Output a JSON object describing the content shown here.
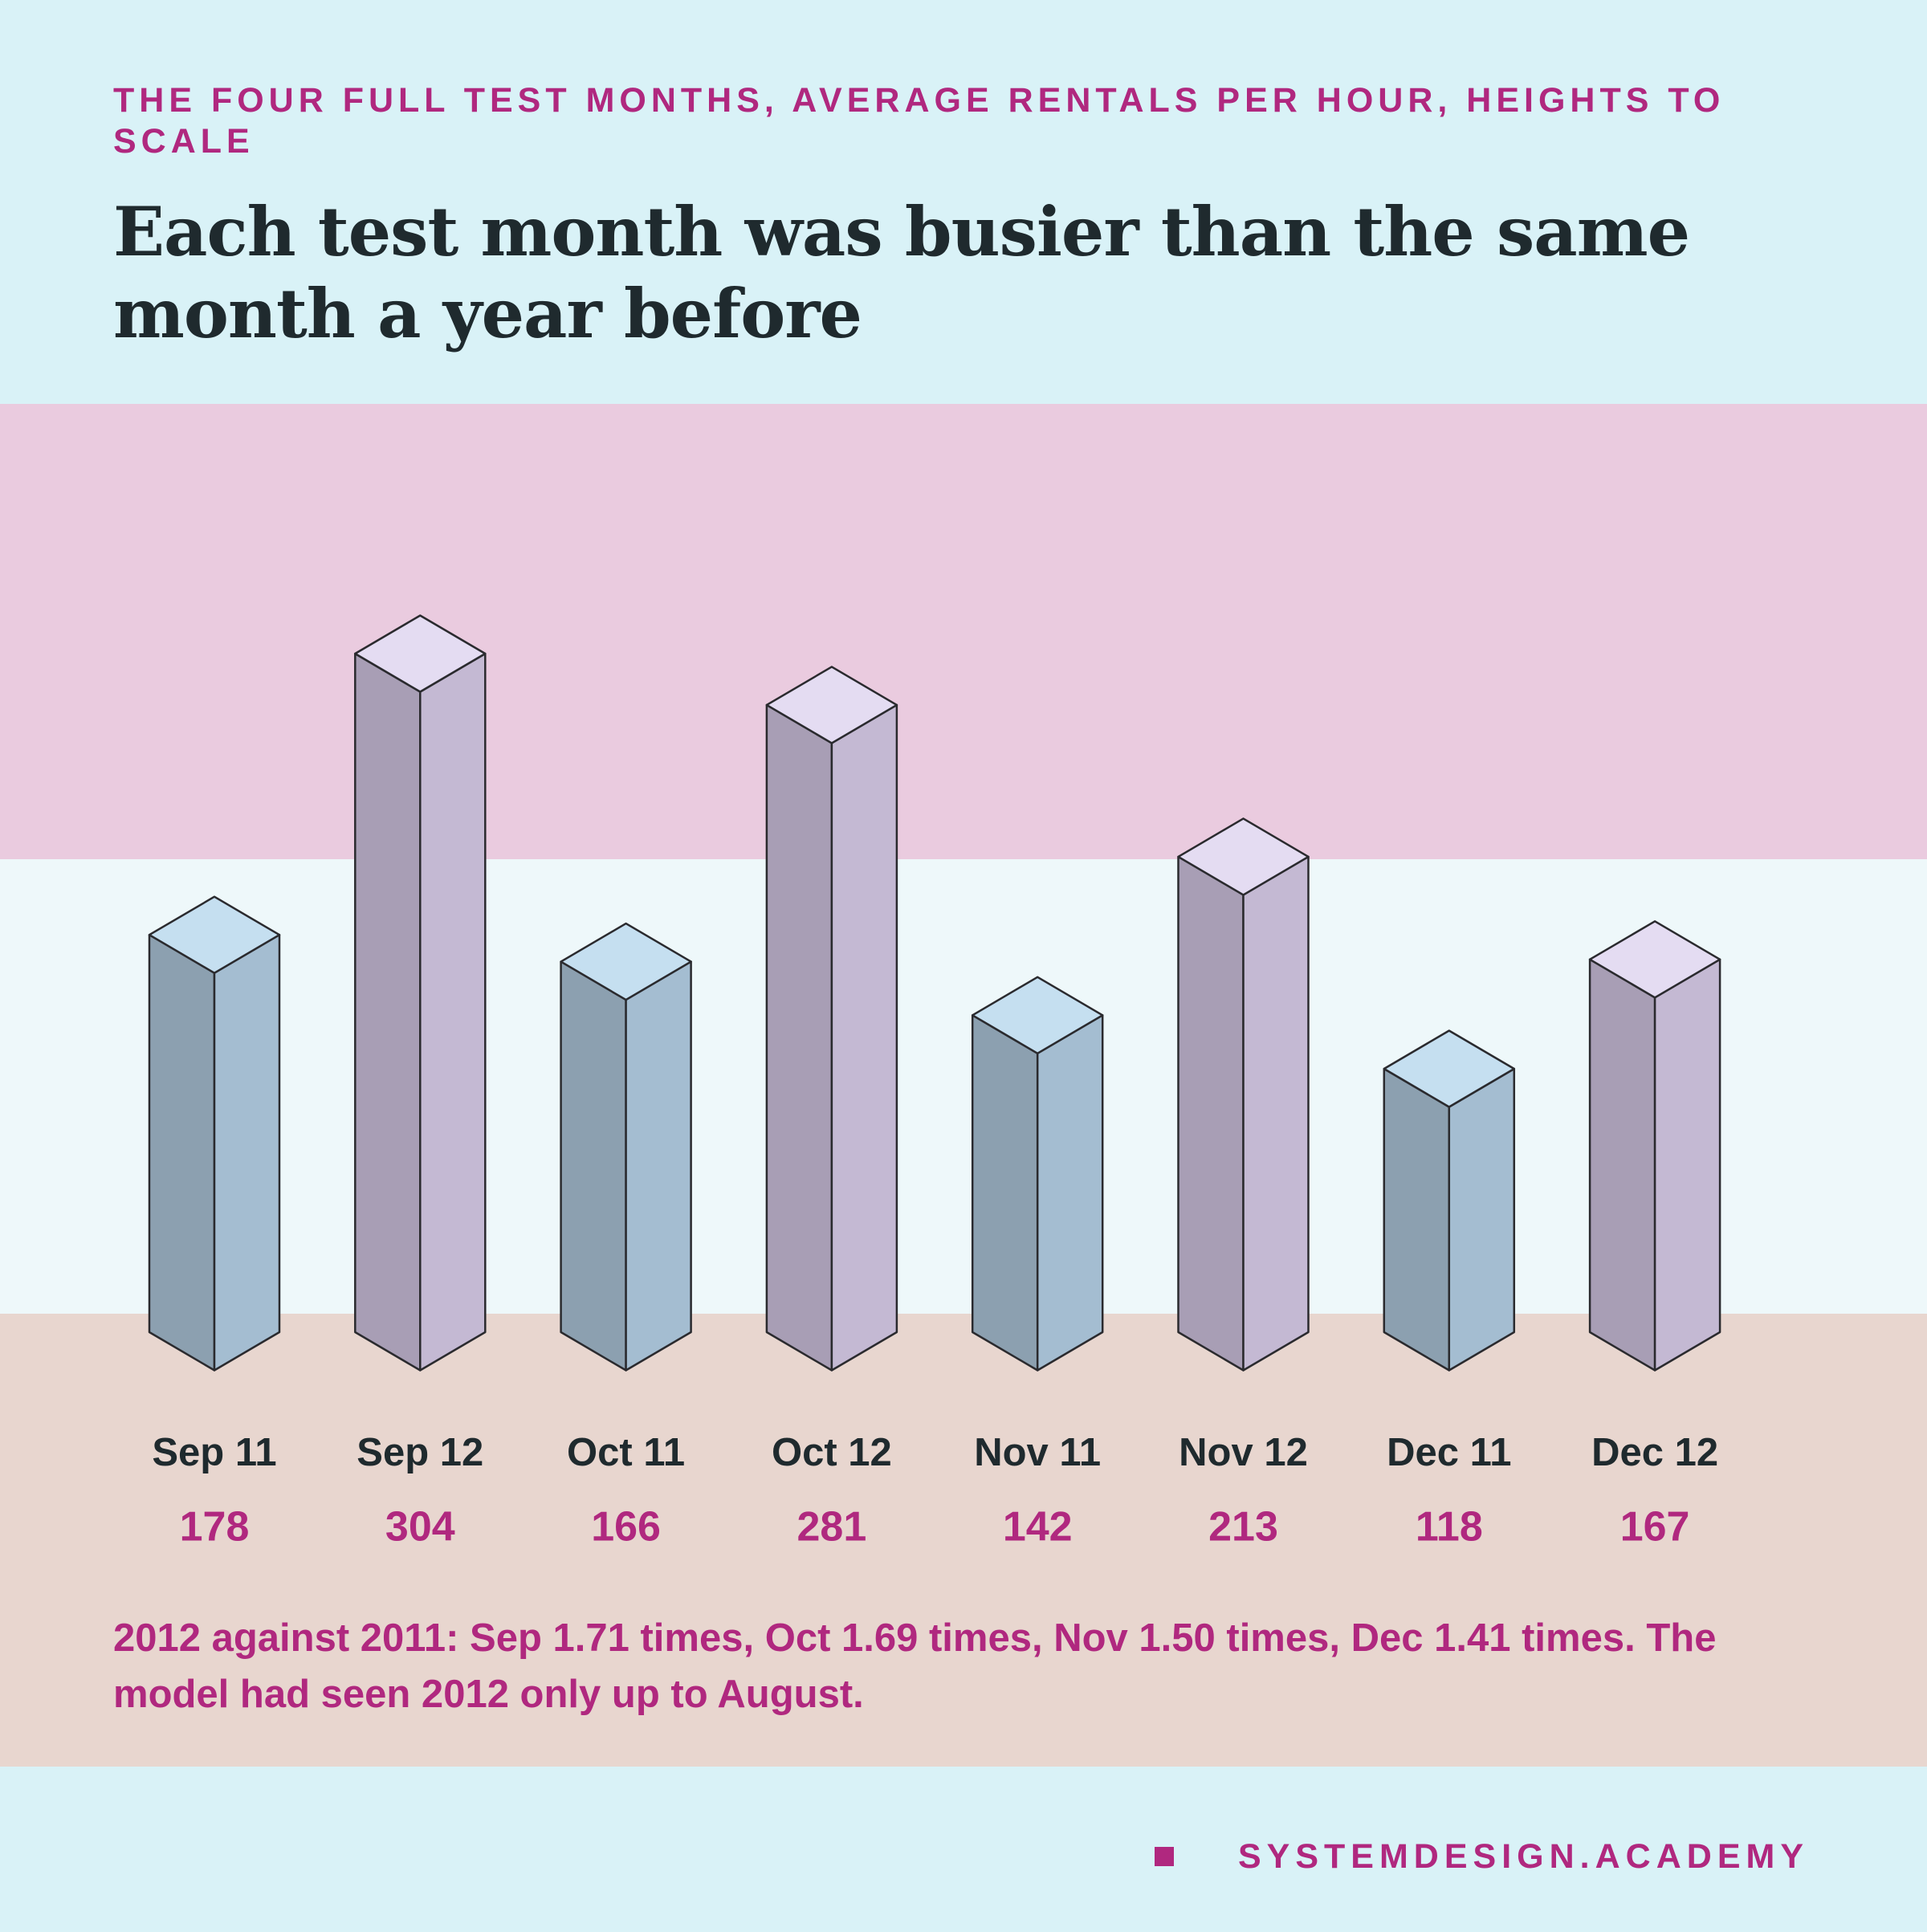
{
  "chart_data": {
    "type": "bar",
    "subtitle": "THE FOUR FULL TEST MONTHS, AVERAGE RENTALS PER HOUR, HEIGHTS TO SCALE",
    "title": "Each test month was busier than the same month a year before",
    "categories": [
      "Sep 11",
      "Sep 12",
      "Oct 11",
      "Oct 12",
      "Nov 11",
      "Nov 12",
      "Dec 11",
      "Dec 12"
    ],
    "values": [
      178,
      304,
      166,
      281,
      142,
      213,
      118,
      167
    ],
    "colors": [
      [
        "#8ca0b0",
        "#a4bdd1",
        "#c5dff0"
      ],
      [
        "#a89eb5",
        "#c4b9d3",
        "#e4dcf2"
      ],
      [
        "#8ca0b0",
        "#a4bdd1",
        "#c5dff0"
      ],
      [
        "#a89eb5",
        "#c4b9d3",
        "#e4dcf2"
      ],
      [
        "#8ca0b0",
        "#a4bdd1",
        "#c5dff0"
      ],
      [
        "#a89eb5",
        "#c4b9d3",
        "#e4dcf2"
      ],
      [
        "#8ca0b0",
        "#a4bdd1",
        "#c5dff0"
      ],
      [
        "#a89eb5",
        "#c4b9d3",
        "#e4dcf2"
      ]
    ],
    "note": "2012 against 2011: Sep 1.71 times, Oct 1.69 times, Nov 1.50 times, Dec 1.41 times. The model had seen 2012 only up to August."
  },
  "footer": "SYSTEMDESIGN.ACADEMY"
}
